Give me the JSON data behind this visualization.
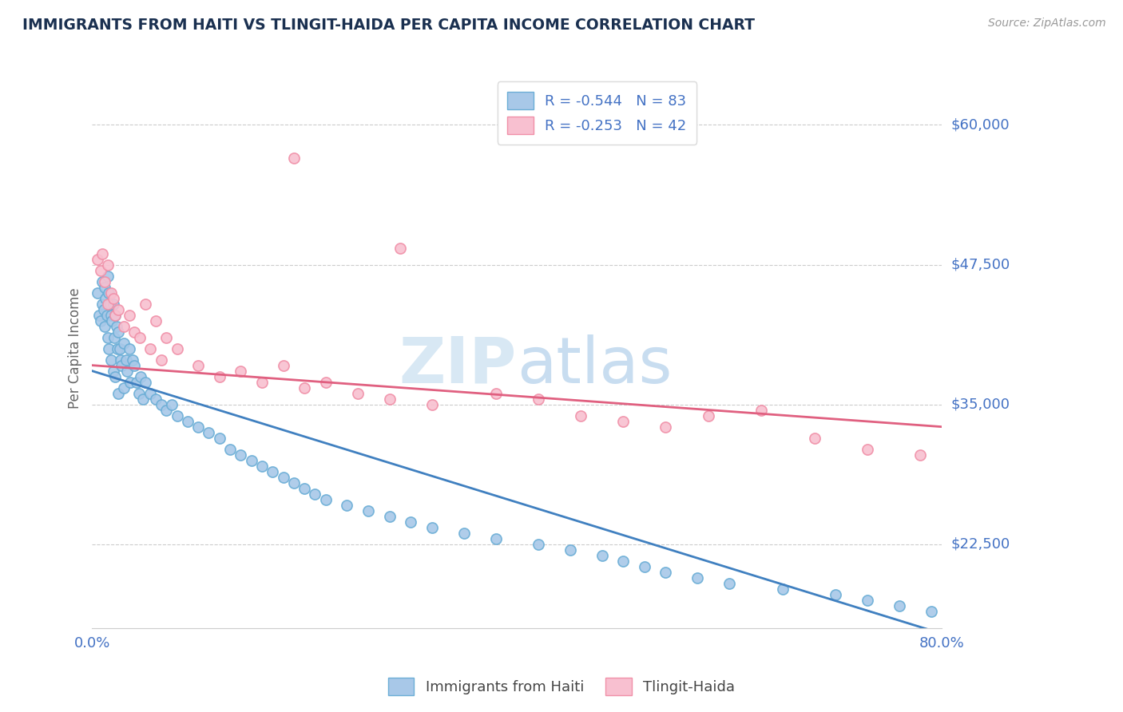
{
  "title": "IMMIGRANTS FROM HAITI VS TLINGIT-HAIDA PER CAPITA INCOME CORRELATION CHART",
  "source": "Source: ZipAtlas.com",
  "ylabel": "Per Capita Income",
  "yticks": [
    22500,
    35000,
    47500,
    60000
  ],
  "ytick_labels": [
    "$22,500",
    "$35,000",
    "$47,500",
    "$60,000"
  ],
  "xlim": [
    0.0,
    0.8
  ],
  "ylim": [
    15000,
    65000
  ],
  "legend1_label1": "R = -0.544   N = 83",
  "legend1_label2": "R = -0.253   N = 42",
  "legend2_label1": "Immigrants from Haiti",
  "legend2_label2": "Tlingit-Haida",
  "color_blue": "#a8c8e8",
  "color_blue_edge": "#6baed6",
  "color_pink": "#f8c0d0",
  "color_pink_edge": "#f090a8",
  "color_blue_line": "#4080c0",
  "color_pink_line": "#e06080",
  "title_color": "#1a3050",
  "axis_label_color": "#4472c4",
  "watermark_color": "#d8e8f4",
  "blue_trend_x0": 0.0,
  "blue_trend_y0": 38000,
  "blue_trend_x1": 0.8,
  "blue_trend_y1": 14500,
  "pink_trend_x0": 0.0,
  "pink_trend_y0": 38500,
  "pink_trend_x1": 0.8,
  "pink_trend_y1": 33000,
  "blue_scatter_x": [
    0.005,
    0.007,
    0.008,
    0.01,
    0.01,
    0.011,
    0.012,
    0.012,
    0.013,
    0.014,
    0.015,
    0.015,
    0.016,
    0.016,
    0.017,
    0.018,
    0.018,
    0.019,
    0.02,
    0.02,
    0.021,
    0.022,
    0.022,
    0.023,
    0.024,
    0.025,
    0.025,
    0.026,
    0.027,
    0.028,
    0.03,
    0.03,
    0.032,
    0.033,
    0.035,
    0.036,
    0.038,
    0.04,
    0.042,
    0.044,
    0.046,
    0.048,
    0.05,
    0.055,
    0.06,
    0.065,
    0.07,
    0.075,
    0.08,
    0.09,
    0.1,
    0.11,
    0.12,
    0.13,
    0.14,
    0.15,
    0.16,
    0.17,
    0.18,
    0.19,
    0.2,
    0.21,
    0.22,
    0.24,
    0.26,
    0.28,
    0.3,
    0.32,
    0.35,
    0.38,
    0.42,
    0.45,
    0.48,
    0.5,
    0.52,
    0.54,
    0.57,
    0.6,
    0.65,
    0.7,
    0.73,
    0.76,
    0.79
  ],
  "blue_scatter_y": [
    45000,
    43000,
    42500,
    46000,
    44000,
    43500,
    45500,
    42000,
    44500,
    43000,
    46500,
    41000,
    45000,
    40000,
    44000,
    43000,
    39000,
    42500,
    44000,
    38000,
    41000,
    43000,
    37500,
    42000,
    40000,
    41500,
    36000,
    40000,
    39000,
    38500,
    40500,
    36500,
    39000,
    38000,
    40000,
    37000,
    39000,
    38500,
    37000,
    36000,
    37500,
    35500,
    37000,
    36000,
    35500,
    35000,
    34500,
    35000,
    34000,
    33500,
    33000,
    32500,
    32000,
    31000,
    30500,
    30000,
    29500,
    29000,
    28500,
    28000,
    27500,
    27000,
    26500,
    26000,
    25500,
    25000,
    24500,
    24000,
    23500,
    23000,
    22500,
    22000,
    21500,
    21000,
    20500,
    20000,
    19500,
    19000,
    18500,
    18000,
    17500,
    17000,
    16500
  ],
  "pink_scatter_x": [
    0.005,
    0.008,
    0.01,
    0.012,
    0.015,
    0.015,
    0.018,
    0.02,
    0.022,
    0.025,
    0.03,
    0.04,
    0.05,
    0.06,
    0.07,
    0.08,
    0.1,
    0.12,
    0.14,
    0.16,
    0.18,
    0.2,
    0.22,
    0.25,
    0.28,
    0.32,
    0.38,
    0.42,
    0.46,
    0.5,
    0.54,
    0.58,
    0.63,
    0.68,
    0.73,
    0.78,
    0.035,
    0.045,
    0.055,
    0.065,
    0.19,
    0.29
  ],
  "pink_scatter_y": [
    48000,
    47000,
    48500,
    46000,
    47500,
    44000,
    45000,
    44500,
    43000,
    43500,
    42000,
    41500,
    44000,
    42500,
    41000,
    40000,
    38500,
    37500,
    38000,
    37000,
    38500,
    36500,
    37000,
    36000,
    35500,
    35000,
    36000,
    35500,
    34000,
    33500,
    33000,
    34000,
    34500,
    32000,
    31000,
    30500,
    43000,
    41000,
    40000,
    39000,
    57000,
    49000
  ]
}
